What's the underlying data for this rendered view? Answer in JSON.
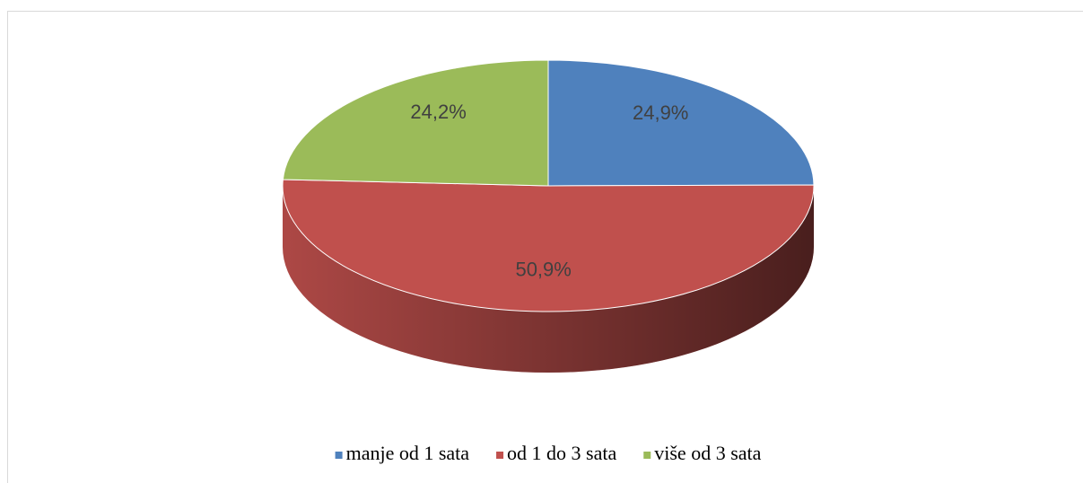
{
  "chart_data": {
    "type": "pie",
    "categories": [
      "manje od 1 sata",
      "od 1 do 3 sata",
      "više od 3 sata"
    ],
    "values": [
      24.9,
      50.9,
      24.2
    ],
    "value_labels": [
      "24,9%",
      "50,9%",
      "24,2%"
    ],
    "colors": [
      "#4f81bd",
      "#c0504d",
      "#9bbb59"
    ],
    "legend": "bottom"
  }
}
